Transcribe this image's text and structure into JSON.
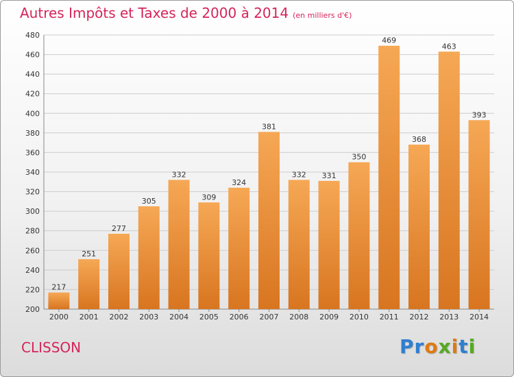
{
  "header": {
    "title": "Autres Impôts et Taxes de 2000 à 2014",
    "unit": "(en milliers d'€)"
  },
  "footer": {
    "city": "CLISSON",
    "logo": "Proxiti"
  },
  "colors": {
    "title": "#d5245a",
    "bar_light": "#f6a855",
    "bar_dark": "#d87520",
    "grid": "#cccccc",
    "logo_letters": [
      "#2f7fd1",
      "#2f7fd1",
      "#e07a10",
      "#55aa22",
      "#e07a10",
      "#2f7fd1",
      "#55aa22"
    ]
  },
  "chart_data": {
    "type": "bar",
    "categories": [
      "2000",
      "2001",
      "2002",
      "2003",
      "2004",
      "2005",
      "2006",
      "2007",
      "2008",
      "2009",
      "2010",
      "2011",
      "2012",
      "2013",
      "2014"
    ],
    "values": [
      217,
      251,
      277,
      305,
      332,
      309,
      324,
      381,
      332,
      331,
      350,
      469,
      368,
      463,
      393
    ],
    "ylim": [
      200,
      480
    ],
    "yticks": [
      200,
      220,
      240,
      260,
      280,
      300,
      320,
      340,
      360,
      380,
      400,
      420,
      440,
      460,
      480
    ],
    "grid": true,
    "title": "Autres Impôts et Taxes de 2000 à 2014",
    "ylabel": "(en milliers d'€)",
    "xlabel": ""
  }
}
